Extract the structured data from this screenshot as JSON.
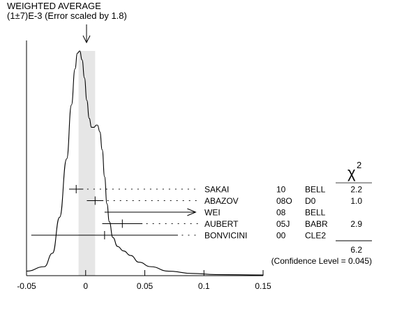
{
  "chart_data": {
    "type": "ideogram",
    "title": "WEIGHTED AVERAGE",
    "subtitle": "(1±7)E-3 (Error scaled by 1.8)",
    "weighted_average": {
      "value": 0.001,
      "error": 0.007,
      "scale_factor": 1.8
    },
    "x_range": [
      -0.05,
      0.15
    ],
    "x_ticks": [
      {
        "value": -0.05,
        "label": "-0.05"
      },
      {
        "value": 0,
        "label": "0"
      },
      {
        "value": 0.05,
        "label": "0.05"
      },
      {
        "value": 0.1,
        "label": "0.1"
      },
      {
        "value": 0.15,
        "label": "0.15"
      }
    ],
    "chi2_header": "χ",
    "chi2_exponent": "2",
    "measurements": [
      {
        "author": "SAKAI",
        "year": "10",
        "experiment": "BELL",
        "chi2": "2.2",
        "value": -0.008,
        "error": 0.006,
        "arrow": false
      },
      {
        "author": "ABAZOV",
        "year": "08O",
        "experiment": "D0",
        "chi2": "1.0",
        "value": 0.008,
        "error": 0.007,
        "arrow": false
      },
      {
        "author": "WEI",
        "year": "08",
        "experiment": "BELL",
        "chi2": "",
        "value": 0.016,
        "error": null,
        "arrow": true,
        "arrow_to": 0.093
      },
      {
        "author": "AUBERT",
        "year": "05J",
        "experiment": "BABR",
        "chi2": "2.9",
        "value": 0.031,
        "error": 0.017,
        "arrow": false
      },
      {
        "author": "BONVICINI",
        "year": "00",
        "experiment": "CLE2",
        "chi2": "",
        "value": 0.016,
        "error": 0.062,
        "arrow": false
      }
    ],
    "chi2_total": "6.2",
    "confidence_level": "(Confidence Level = 0.045)",
    "ideogram_curve": [
      [
        -0.05,
        0.02
      ],
      [
        -0.035,
        0.04
      ],
      [
        -0.028,
        0.1
      ],
      [
        -0.022,
        0.26
      ],
      [
        -0.016,
        0.52
      ],
      [
        -0.012,
        0.76
      ],
      [
        -0.009,
        0.92
      ],
      [
        -0.007,
        0.99
      ],
      [
        -0.005,
        1.0
      ],
      [
        -0.003,
        0.96
      ],
      [
        -0.001,
        0.88
      ],
      [
        0.001,
        0.78
      ],
      [
        0.003,
        0.7
      ],
      [
        0.005,
        0.66
      ],
      [
        0.007,
        0.66
      ],
      [
        0.009,
        0.67
      ],
      [
        0.01,
        0.67
      ],
      [
        0.012,
        0.64
      ],
      [
        0.014,
        0.56
      ],
      [
        0.016,
        0.44
      ],
      [
        0.018,
        0.32
      ],
      [
        0.02,
        0.24
      ],
      [
        0.023,
        0.17
      ],
      [
        0.027,
        0.13
      ],
      [
        0.032,
        0.11
      ],
      [
        0.038,
        0.09
      ],
      [
        0.045,
        0.06
      ],
      [
        0.055,
        0.04
      ],
      [
        0.07,
        0.02
      ],
      [
        0.09,
        0.01
      ],
      [
        0.11,
        0.005
      ],
      [
        0.15,
        0.003
      ]
    ]
  }
}
